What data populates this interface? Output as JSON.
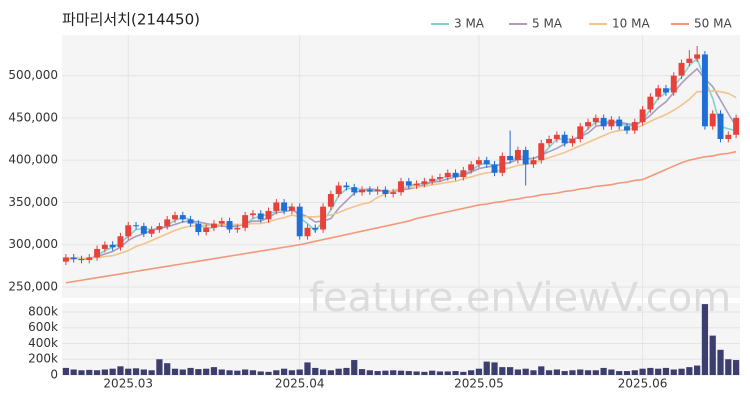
{
  "chart_data": {
    "type": "candlestick",
    "title": "파마리서치(214450)",
    "watermark": "feature.enViewV.com",
    "categories": [
      null,
      null,
      null,
      null,
      null,
      null,
      null,
      null,
      "2025.03",
      null,
      null,
      null,
      null,
      null,
      null,
      null,
      null,
      null,
      null,
      null,
      null,
      null,
      null,
      null,
      null,
      null,
      null,
      null,
      null,
      null,
      "2025.04",
      null,
      null,
      null,
      null,
      null,
      null,
      null,
      null,
      null,
      null,
      null,
      null,
      null,
      null,
      null,
      null,
      null,
      null,
      null,
      null,
      null,
      null,
      "2025.05",
      null,
      null,
      null,
      null,
      null,
      null,
      null,
      null,
      null,
      null,
      null,
      null,
      null,
      null,
      null,
      null,
      null,
      null,
      null,
      null,
      "2025.06",
      null,
      null,
      null,
      null,
      null,
      null,
      null,
      null,
      null,
      null,
      null,
      null
    ],
    "open": [
      280000,
      285000,
      283000,
      282000,
      285000,
      295000,
      300000,
      297000,
      310000,
      323000,
      322000,
      313000,
      318000,
      322000,
      330000,
      335000,
      330000,
      325000,
      315000,
      320000,
      325000,
      328000,
      318000,
      320000,
      335000,
      337000,
      330000,
      340000,
      350000,
      340000,
      345000,
      310000,
      320000,
      318000,
      345000,
      360000,
      370000,
      368000,
      362000,
      365000,
      363000,
      365000,
      360000,
      362000,
      375000,
      370000,
      372000,
      375000,
      378000,
      380000,
      385000,
      380000,
      388000,
      395000,
      400000,
      395000,
      385000,
      405000,
      400000,
      412000,
      395000,
      400000,
      420000,
      425000,
      430000,
      420000,
      425000,
      440000,
      445000,
      450000,
      440000,
      448000,
      440000,
      435000,
      445000,
      460000,
      475000,
      485000,
      480000,
      500000,
      515000,
      520000,
      525000,
      440000,
      455000,
      425000,
      430000
    ],
    "high": [
      289000,
      289000,
      287000,
      289000,
      299000,
      304000,
      304000,
      314000,
      327000,
      327000,
      326000,
      322000,
      326000,
      334000,
      339000,
      339000,
      334000,
      329000,
      324000,
      329000,
      332000,
      332000,
      324000,
      339000,
      341000,
      341000,
      344000,
      354000,
      354000,
      349000,
      349000,
      324000,
      324000,
      349000,
      364000,
      374000,
      374000,
      372000,
      369000,
      369000,
      369000,
      369000,
      366000,
      379000,
      379000,
      376000,
      379000,
      382000,
      384000,
      389000,
      389000,
      392000,
      399000,
      404000,
      404000,
      399000,
      409000,
      435000,
      416000,
      416000,
      404000,
      424000,
      429000,
      434000,
      434000,
      429000,
      444000,
      449000,
      454000,
      454000,
      452000,
      452000,
      444000,
      449000,
      464000,
      479000,
      489000,
      489000,
      504000,
      519000,
      530000,
      535000,
      529000,
      459000,
      459000,
      434000,
      454000
    ],
    "low": [
      276000,
      279000,
      278000,
      278000,
      281000,
      291000,
      293000,
      293000,
      306000,
      318000,
      309000,
      309000,
      314000,
      318000,
      326000,
      326000,
      321000,
      311000,
      311000,
      316000,
      321000,
      314000,
      314000,
      316000,
      331000,
      326000,
      326000,
      336000,
      336000,
      336000,
      306000,
      306000,
      314000,
      314000,
      341000,
      356000,
      364000,
      358000,
      358000,
      359000,
      359000,
      356000,
      356000,
      358000,
      366000,
      366000,
      368000,
      371000,
      374000,
      376000,
      376000,
      376000,
      384000,
      391000,
      391000,
      381000,
      381000,
      396000,
      396000,
      370000,
      391000,
      396000,
      416000,
      421000,
      416000,
      416000,
      421000,
      436000,
      441000,
      436000,
      436000,
      436000,
      431000,
      431000,
      441000,
      456000,
      471000,
      476000,
      476000,
      496000,
      511000,
      516000,
      436000,
      436000,
      421000,
      421000,
      426000
    ],
    "close": [
      285000,
      283000,
      282000,
      285000,
      295000,
      300000,
      297000,
      310000,
      323000,
      322000,
      313000,
      318000,
      322000,
      330000,
      335000,
      330000,
      325000,
      315000,
      320000,
      325000,
      328000,
      318000,
      320000,
      335000,
      337000,
      330000,
      340000,
      350000,
      340000,
      345000,
      310000,
      320000,
      318000,
      345000,
      360000,
      370000,
      368000,
      362000,
      365000,
      363000,
      365000,
      360000,
      362000,
      375000,
      370000,
      372000,
      375000,
      378000,
      380000,
      385000,
      380000,
      388000,
      395000,
      400000,
      395000,
      385000,
      405000,
      400000,
      412000,
      395000,
      400000,
      420000,
      425000,
      430000,
      420000,
      425000,
      440000,
      445000,
      450000,
      440000,
      448000,
      440000,
      435000,
      445000,
      460000,
      475000,
      485000,
      480000,
      500000,
      515000,
      520000,
      525000,
      440000,
      455000,
      425000,
      430000,
      450000
    ],
    "up_color": "#e8403a",
    "down_color": "#1f6fd6",
    "ylim": [
      237000,
      548000
    ],
    "yticks": [
      {
        "value": 250000,
        "label": "250,000"
      },
      {
        "value": 300000,
        "label": "300,000"
      },
      {
        "value": 350000,
        "label": "350,000"
      },
      {
        "value": 400000,
        "label": "400,000"
      },
      {
        "value": 450000,
        "label": "450,000"
      },
      {
        "value": 500000,
        "label": "500,000"
      }
    ],
    "grid": true,
    "ma": [
      {
        "name": "3 MA",
        "color": "#7fd3d0",
        "values": [
          284000,
          284000,
          283000,
          283000,
          287000,
          293000,
          297000,
          302000,
          310000,
          318000,
          319000,
          318000,
          318000,
          323000,
          329000,
          332000,
          330000,
          323000,
          320000,
          320000,
          324000,
          324000,
          322000,
          324000,
          331000,
          334000,
          336000,
          340000,
          343000,
          345000,
          332000,
          325000,
          316000,
          328000,
          341000,
          358000,
          366000,
          367000,
          365000,
          363000,
          364000,
          363000,
          362000,
          366000,
          369000,
          372000,
          372000,
          375000,
          378000,
          381000,
          382000,
          384000,
          388000,
          394000,
          397000,
          393000,
          395000,
          397000,
          406000,
          402000,
          402000,
          405000,
          415000,
          425000,
          425000,
          425000,
          428000,
          437000,
          445000,
          445000,
          446000,
          443000,
          441000,
          440000,
          447000,
          460000,
          473000,
          480000,
          488000,
          498000,
          512000,
          520000,
          495000,
          473000,
          440000,
          437000,
          435000
        ]
      },
      {
        "name": "5 MA",
        "color": "#a99cc0",
        "values": [
          284000,
          284000,
          284000,
          284000,
          286000,
          289000,
          292000,
          297000,
          305000,
          310000,
          313000,
          317000,
          320000,
          321000,
          324000,
          327000,
          328000,
          327000,
          325000,
          323000,
          322000,
          321000,
          322000,
          325000,
          328000,
          328000,
          332000,
          338000,
          339000,
          341000,
          337000,
          333000,
          327000,
          328000,
          331000,
          343000,
          352000,
          361000,
          365000,
          366000,
          365000,
          363000,
          363000,
          365000,
          366000,
          368000,
          371000,
          374000,
          375000,
          378000,
          380000,
          382000,
          386000,
          390000,
          392000,
          393000,
          396000,
          397000,
          401000,
          401000,
          402000,
          406000,
          410000,
          414000,
          419000,
          424000,
          428000,
          432000,
          440000,
          442000,
          445000,
          445000,
          443000,
          442000,
          446000,
          453000,
          462000,
          469000,
          480000,
          491000,
          500000,
          508000,
          496000,
          487000,
          471000,
          455000,
          440000
        ]
      },
      {
        "name": "10 MA",
        "color": "#f2c48c",
        "values": [
          283000,
          283000,
          284000,
          284000,
          285000,
          286000,
          287000,
          290000,
          293000,
          298000,
          301000,
          305000,
          309000,
          313000,
          317000,
          320000,
          322000,
          323000,
          323000,
          323000,
          324000,
          324000,
          324000,
          324000,
          325000,
          325000,
          327000,
          330000,
          332000,
          335000,
          333000,
          333000,
          333000,
          334000,
          335000,
          338000,
          342000,
          345000,
          348000,
          350000,
          356000,
          360000,
          364000,
          367000,
          368000,
          368000,
          369000,
          371000,
          372000,
          374000,
          375000,
          378000,
          380000,
          383000,
          385000,
          386000,
          389000,
          391000,
          394000,
          395000,
          397000,
          400000,
          403000,
          406000,
          409000,
          413000,
          417000,
          421000,
          425000,
          429000,
          433000,
          435000,
          436000,
          438000,
          441000,
          446000,
          450000,
          454000,
          459000,
          465000,
          472000,
          481000,
          481000,
          482000,
          481000,
          479000,
          474000
        ]
      },
      {
        "name": "50 MA",
        "color": "#f4977a",
        "values": [
          255000,
          256500,
          258000,
          259500,
          261000,
          262500,
          264000,
          265500,
          267000,
          268500,
          270000,
          271500,
          273000,
          274500,
          276000,
          277500,
          279000,
          280500,
          282000,
          283500,
          285000,
          286500,
          288000,
          289500,
          291000,
          292500,
          294000,
          295500,
          297000,
          298500,
          300000,
          302000,
          304000,
          306000,
          308000,
          310000,
          312000,
          314000,
          316000,
          318000,
          320000,
          322000,
          324000,
          326000,
          328000,
          331000,
          333000,
          335000,
          337000,
          339000,
          341000,
          343000,
          345000,
          347000,
          348000,
          350000,
          351000,
          353000,
          354000,
          356000,
          357000,
          359000,
          360000,
          361000,
          363000,
          364000,
          366000,
          367000,
          369000,
          370000,
          371000,
          373000,
          374000,
          376000,
          377000,
          381000,
          385000,
          389000,
          393000,
          397000,
          400000,
          402000,
          404000,
          405000,
          407000,
          408000,
          410000
        ]
      }
    ],
    "volume": {
      "color": "#3c3f6e",
      "values": [
        90000,
        70000,
        60000,
        65000,
        60000,
        70000,
        80000,
        110000,
        80000,
        85000,
        70000,
        60000,
        200000,
        150000,
        80000,
        70000,
        90000,
        75000,
        80000,
        100000,
        70000,
        60000,
        55000,
        70000,
        60000,
        45000,
        40000,
        60000,
        80000,
        60000,
        70000,
        160000,
        90000,
        70000,
        60000,
        80000,
        90000,
        190000,
        75000,
        60000,
        50000,
        55000,
        60000,
        55000,
        50000,
        45000,
        40000,
        55000,
        45000,
        45000,
        50000,
        40000,
        60000,
        80000,
        170000,
        160000,
        100000,
        100000,
        70000,
        80000,
        60000,
        110000,
        60000,
        70000,
        50000,
        60000,
        70000,
        60000,
        60000,
        90000,
        70000,
        50000,
        50000,
        60000,
        80000,
        90000,
        80000,
        90000,
        70000,
        80000,
        100000,
        120000,
        900000,
        500000,
        320000,
        200000,
        190000
      ],
      "ylim": [
        0,
        914000
      ],
      "yticks": [
        0,
        {
          "value": 200000,
          "label": "200k"
        },
        {
          "value": 400000,
          "label": "400k"
        },
        {
          "value": 600000,
          "label": "600k"
        },
        {
          "value": 800000,
          "label": "800k"
        }
      ]
    }
  }
}
